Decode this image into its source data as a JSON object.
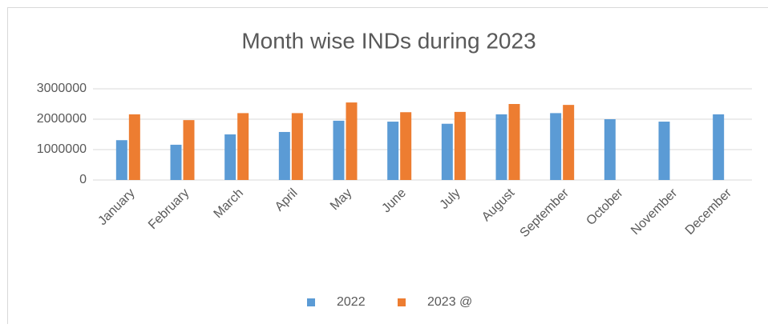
{
  "chart_data": {
    "type": "bar",
    "title": "Month wise INDs during 2023",
    "categories": [
      "January",
      "February",
      "March",
      "April",
      "May",
      "June",
      "July",
      "August",
      "September",
      "October",
      "November",
      "December"
    ],
    "series": [
      {
        "name": "2022",
        "color": "#5b9bd5",
        "values": [
          1310000,
          1160000,
          1500000,
          1580000,
          1950000,
          1920000,
          1850000,
          2160000,
          2200000,
          2000000,
          1920000,
          2160000
        ]
      },
      {
        "name": "2023 @",
        "color": "#ed7d31",
        "values": [
          2160000,
          1970000,
          2200000,
          2200000,
          2550000,
          2230000,
          2240000,
          2500000,
          2470000,
          null,
          null,
          null
        ]
      }
    ],
    "ylim": [
      0,
      3000000
    ],
    "yticks": [
      0,
      1000000,
      2000000,
      3000000
    ],
    "grid": true,
    "legend": "bottom"
  }
}
